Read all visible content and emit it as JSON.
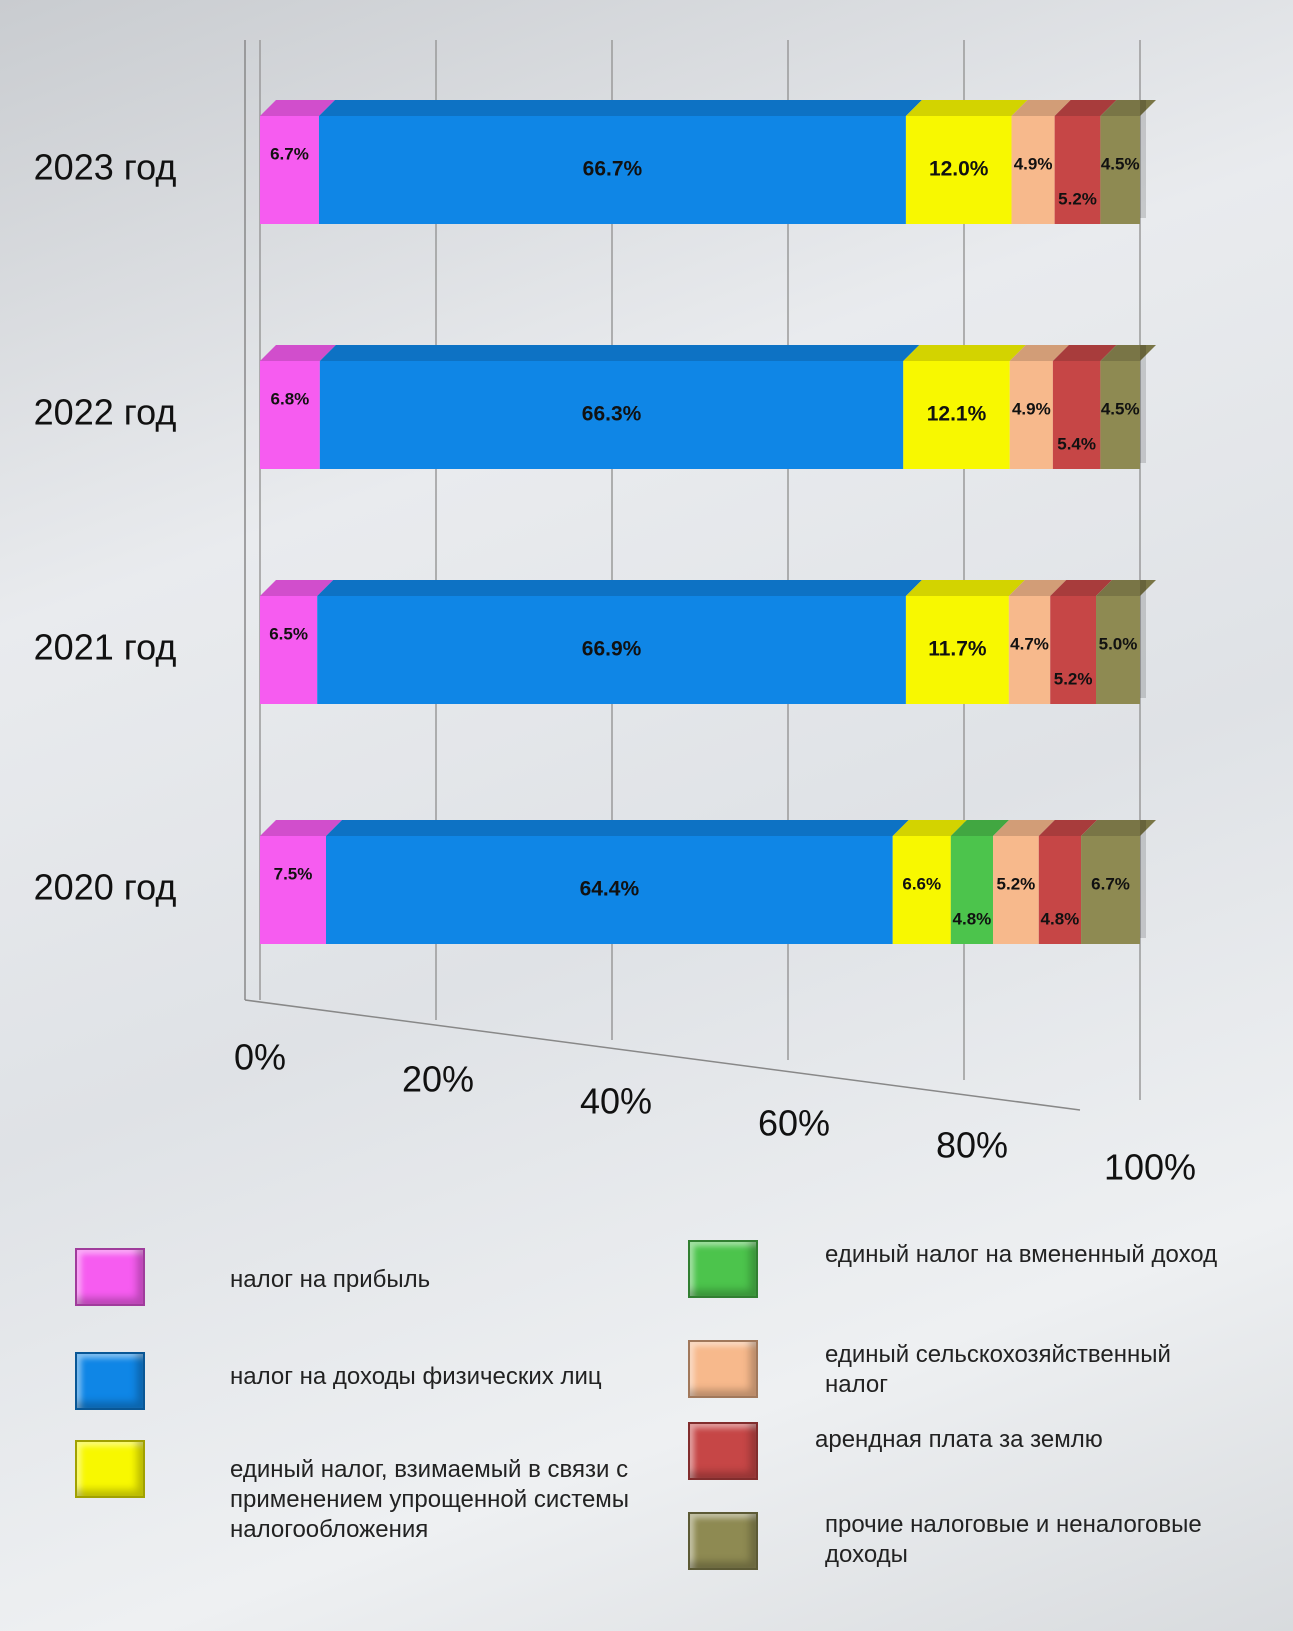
{
  "chart_data": {
    "type": "stacked-bar-horizontal",
    "categories": [
      "2023 год",
      "2022 год",
      "2021 год",
      "2020 год"
    ],
    "series": [
      {
        "name": "налог на прибыль",
        "color": "#f65cf0",
        "values": [
          6.7,
          6.8,
          6.5,
          7.5
        ],
        "value_labels": [
          "6.7%",
          "6.8%",
          "6.5%",
          "7.5%"
        ]
      },
      {
        "name": "налог на доходы физических лиц",
        "color": "#0f86e6",
        "values": [
          66.7,
          66.3,
          66.9,
          64.4
        ],
        "value_labels": [
          "66.7%",
          "66.3%",
          "66.9%",
          "64.4%"
        ]
      },
      {
        "name": "единый налог, взимаемый  в связи с применением упрощенной системы налогообложения",
        "color": "#f8f800",
        "values": [
          12.0,
          12.1,
          11.7,
          6.6
        ],
        "value_labels": [
          "12.0%",
          "12.1%",
          "11.7%",
          "6.6%"
        ]
      },
      {
        "name": "единый налог на вмененный доход",
        "color": "#4cc44c",
        "values": [
          null,
          null,
          null,
          4.8
        ],
        "value_labels": [
          null,
          null,
          null,
          "4.8%"
        ]
      },
      {
        "name": "единый сельскохозяйственный налог",
        "color": "#f7b98c",
        "values": [
          4.9,
          4.9,
          4.7,
          5.2
        ],
        "value_labels": [
          "4.9%",
          "4.9%",
          "4.7%",
          "5.2%"
        ]
      },
      {
        "name": "арендная плата за землю",
        "color": "#c64646",
        "values": [
          5.2,
          5.4,
          5.2,
          4.8
        ],
        "value_labels": [
          "5.2%",
          "5.4%",
          "5.2%",
          "4.8%"
        ]
      },
      {
        "name": "прочие налоговые и неналоговые доходы",
        "color": "#8e8a52",
        "values": [
          4.5,
          4.5,
          5.0,
          6.7
        ],
        "value_labels": [
          "4.5%",
          "4.5%",
          "5.0%",
          "6.7%"
        ]
      }
    ],
    "xlim": [
      0,
      100
    ],
    "xticks": [
      {
        "value": 0,
        "label": "0%"
      },
      {
        "value": 20,
        "label": "20%"
      },
      {
        "value": 40,
        "label": "40%"
      },
      {
        "value": 60,
        "label": "60%"
      },
      {
        "value": 80,
        "label": "80%"
      },
      {
        "value": 100,
        "label": "100%"
      }
    ],
    "grid": true
  }
}
